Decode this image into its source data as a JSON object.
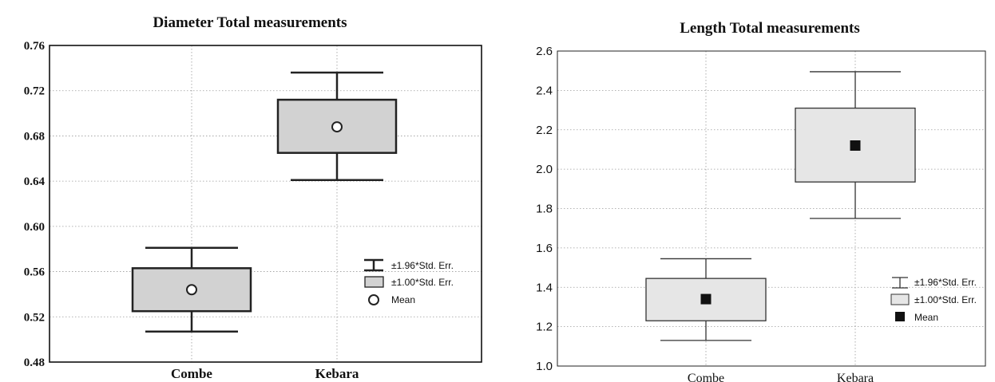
{
  "chart_data": [
    {
      "type": "boxplot",
      "title": "Diameter Total measurements",
      "categories": [
        "Combe",
        "Kebara"
      ],
      "ylim": [
        0.48,
        0.76
      ],
      "yticks": [
        "0.48",
        "0.52",
        "0.56",
        "0.60",
        "0.64",
        "0.68",
        "0.72",
        "0.76"
      ],
      "grid": true,
      "legend_position": "right",
      "legend": [
        "±1.96*Std. Err.",
        "±1.00*Std. Err.",
        "Mean"
      ],
      "mean_marker": "open-circle",
      "series": [
        {
          "category": "Combe",
          "mean": 0.544,
          "se_low": 0.525,
          "se_high": 0.563,
          "ci_low": 0.507,
          "ci_high": 0.581
        },
        {
          "category": "Kebara",
          "mean": 0.688,
          "se_low": 0.665,
          "se_high": 0.712,
          "ci_low": 0.641,
          "ci_high": 0.736
        }
      ],
      "colors": {
        "box": "#d2d2d2",
        "stroke": "#222222"
      }
    },
    {
      "type": "boxplot",
      "title": "Length Total measurements",
      "categories": [
        "Combe",
        "Kebara"
      ],
      "ylim": [
        1.0,
        2.6
      ],
      "yticks": [
        "1.0",
        "1.2",
        "1.4",
        "1.6",
        "1.8",
        "2.0",
        "2.2",
        "2.4",
        "2.6"
      ],
      "grid": true,
      "legend_position": "right",
      "legend": [
        "±1.96*Std. Err.",
        "±1.00*Std. Err.",
        "Mean"
      ],
      "mean_marker": "filled-square",
      "series": [
        {
          "category": "Combe",
          "mean": 1.34,
          "se_low": 1.23,
          "se_high": 1.445,
          "ci_low": 1.13,
          "ci_high": 1.545
        },
        {
          "category": "Kebara",
          "mean": 2.12,
          "se_low": 1.935,
          "se_high": 2.31,
          "ci_low": 1.75,
          "ci_high": 2.495
        }
      ],
      "colors": {
        "box": "#e6e6e6",
        "stroke": "#333333"
      }
    }
  ]
}
